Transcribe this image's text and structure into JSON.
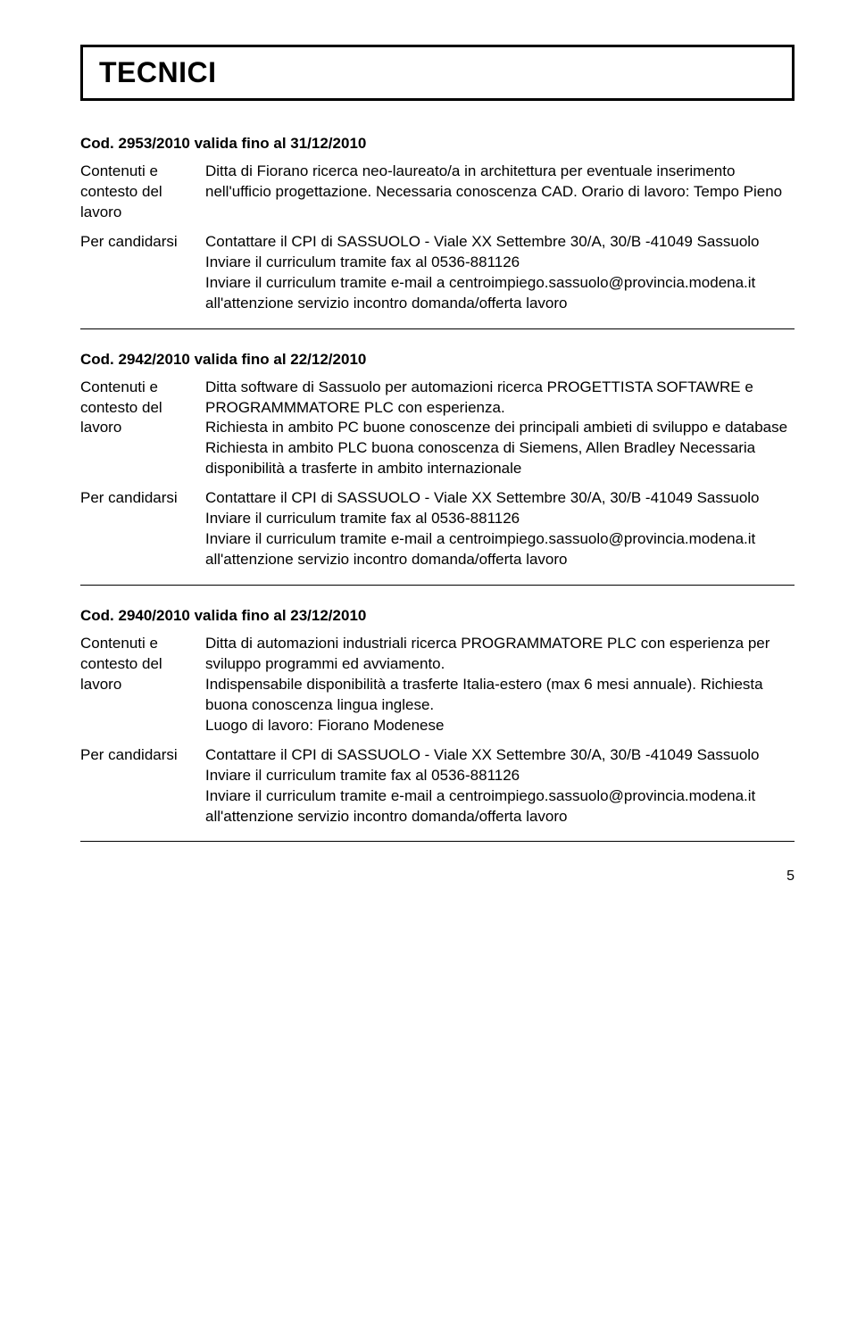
{
  "header": {
    "title": "TECNICI"
  },
  "listings": [
    {
      "code": "Cod. 2953/2010 valida fino al 31/12/2010",
      "content_label": "Contenuti e contesto del lavoro",
      "content_text": "Ditta di Fiorano ricerca neo-laureato/a in architettura per eventuale inserimento nell'ufficio progettazione. Necessaria conoscenza CAD. Orario di lavoro: Tempo Pieno",
      "apply_label": "Per candidarsi",
      "apply_text": "Contattare il CPI di SASSUOLO - Viale XX Settembre 30/A, 30/B -41049 Sassuolo\nInviare il curriculum tramite fax al 0536-881126\nInviare il curriculum tramite e-mail a centroimpiego.sassuolo@provincia.modena.it\nall'attenzione servizio incontro domanda/offerta lavoro"
    },
    {
      "code": "Cod. 2942/2010 valida fino al 22/12/2010",
      "content_label": "Contenuti e contesto del lavoro",
      "content_text": "Ditta software di Sassuolo per automazioni ricerca PROGETTISTA SOFTAWRE e PROGRAMMMATORE PLC con esperienza.\nRichiesta in ambito PC buone conoscenze dei principali ambieti di sviluppo e database\nRichiesta in ambito PLC buona conoscenza di Siemens, Allen Bradley Necessaria disponibilità a trasferte in ambito internazionale",
      "apply_label": "Per candidarsi",
      "apply_text": "Contattare il CPI di SASSUOLO - Viale XX Settembre 30/A, 30/B -41049 Sassuolo\nInviare il curriculum tramite fax al 0536-881126\nInviare il curriculum tramite e-mail a centroimpiego.sassuolo@provincia.modena.it\nall'attenzione servizio incontro domanda/offerta lavoro"
    },
    {
      "code": "Cod. 2940/2010 valida fino al 23/12/2010",
      "content_label": "Contenuti e contesto del lavoro",
      "content_text": "Ditta di automazioni industriali ricerca PROGRAMMATORE PLC con esperienza per sviluppo programmi ed avviamento.\nIndispensabile disponibilità a trasferte Italia-estero (max 6 mesi annuale). Richiesta buona conoscenza lingua inglese.\nLuogo di lavoro: Fiorano Modenese",
      "apply_label": "Per candidarsi",
      "apply_text": "Contattare il CPI di SASSUOLO - Viale XX Settembre 30/A, 30/B -41049 Sassuolo\nInviare il curriculum tramite fax al 0536-881126\nInviare il curriculum tramite e-mail a centroimpiego.sassuolo@provincia.modena.it\nall'attenzione servizio incontro domanda/offerta lavoro"
    }
  ],
  "page_number": "5"
}
